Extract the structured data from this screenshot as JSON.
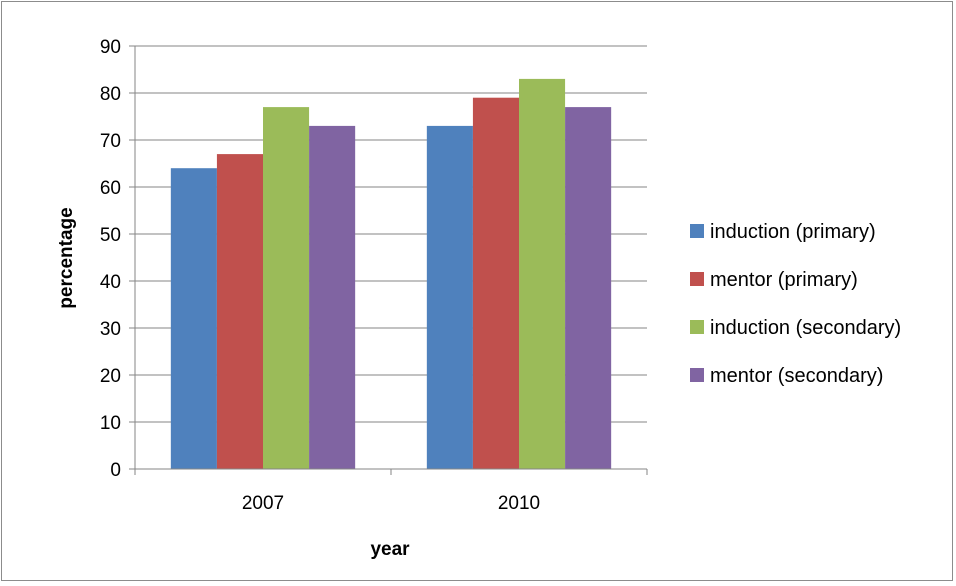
{
  "chart_data": {
    "type": "bar",
    "categories": [
      "2007",
      "2010"
    ],
    "series": [
      {
        "name": "induction (primary)",
        "values": [
          64,
          73
        ],
        "color": "#4f81bd"
      },
      {
        "name": "mentor (primary)",
        "values": [
          67,
          79
        ],
        "color": "#c0504d"
      },
      {
        "name": "induction (secondary)",
        "values": [
          77,
          83
        ],
        "color": "#9bbb59"
      },
      {
        "name": "mentor (secondary)",
        "values": [
          73,
          77
        ],
        "color": "#8064a2"
      }
    ],
    "xlabel": "year",
    "ylabel": "percentage",
    "ylim": [
      0,
      90
    ],
    "yticks": [
      "0",
      "10",
      "20",
      "30",
      "40",
      "50",
      "60",
      "70",
      "80",
      "90"
    ],
    "grid": true,
    "legend_position": "right"
  }
}
